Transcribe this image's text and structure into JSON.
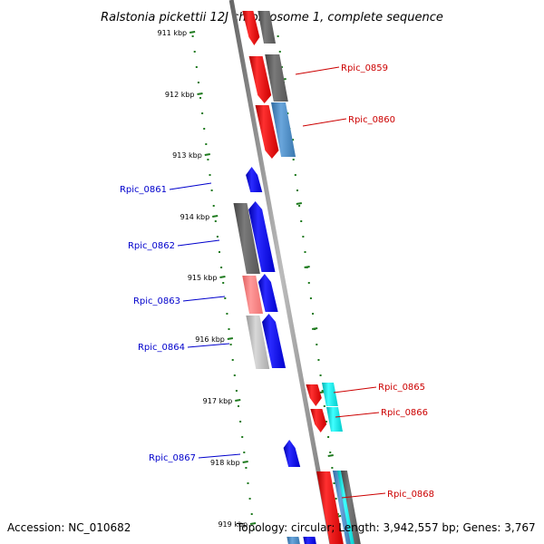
{
  "title": "Ralstonia pickettii 12J chromosome 1, complete sequence",
  "footer": {
    "accession": "Accession: NC_010682",
    "summary": "Topology: circular; Length: 3,942,557 bp; Genes: 3,767"
  },
  "ruler": [
    {
      "label": "911 kbp"
    },
    {
      "label": "912 kbp"
    },
    {
      "label": "913 kbp"
    },
    {
      "label": "914 kbp"
    },
    {
      "label": "915 kbp"
    },
    {
      "label": "916 kbp"
    },
    {
      "label": "917 kbp"
    },
    {
      "label": "918 kbp"
    },
    {
      "label": "919 kbp"
    }
  ],
  "gene_labels": [
    {
      "name": "Rpic_0859",
      "strand": "plus"
    },
    {
      "name": "Rpic_0860",
      "strand": "plus"
    },
    {
      "name": "Rpic_0861",
      "strand": "minus"
    },
    {
      "name": "Rpic_0862",
      "strand": "minus"
    },
    {
      "name": "Rpic_0863",
      "strand": "minus"
    },
    {
      "name": "Rpic_0864",
      "strand": "minus"
    },
    {
      "name": "Rpic_0865",
      "strand": "plus"
    },
    {
      "name": "Rpic_0866",
      "strand": "plus"
    },
    {
      "name": "Rpic_0867",
      "strand": "minus"
    },
    {
      "name": "Rpic_0868",
      "strand": "plus"
    }
  ],
  "colors": {
    "plus_label": "#cc0000",
    "minus_label": "#0000cc",
    "ruler": "#1e7a1e",
    "backbone": "#888888",
    "red": "#ff0000",
    "blue": "#0000ff",
    "gray": "#666666",
    "steel": "#4a86c0",
    "cyan": "#00e5e5",
    "pink": "#ff8080",
    "lightgray": "#bbbbbb"
  }
}
